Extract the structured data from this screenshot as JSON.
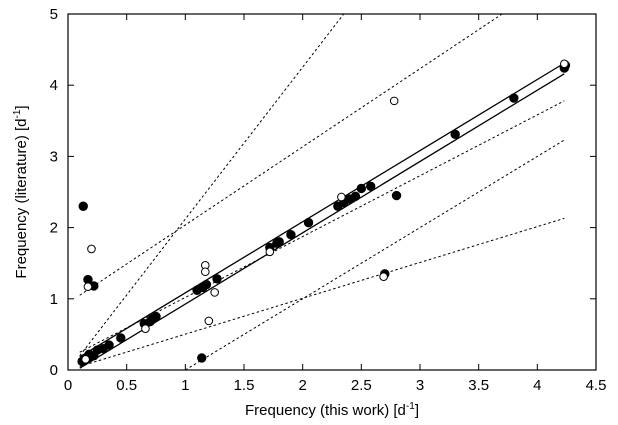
{
  "chart_data": {
    "type": "scatter",
    "title": "",
    "xlabel": "Frequency (this work) [d",
    "xlabel_sup": "-1",
    "xlabel_end": "]",
    "ylabel": "Frequency (literature) [d",
    "ylabel_sup": "-1",
    "ylabel_end": "]",
    "xlim": [
      0,
      4.5
    ],
    "ylim": [
      0,
      5
    ],
    "xticks": [
      "0",
      "0.5",
      "1",
      "1.5",
      "2",
      "2.5",
      "3",
      "3.5",
      "4",
      "4.5"
    ],
    "yticks": [
      "0",
      "1",
      "2",
      "3",
      "4",
      "5"
    ],
    "grid": false,
    "legend": "none",
    "series": [
      {
        "marker": "filled-circle",
        "points": [
          [
            0.12,
            0.12
          ],
          [
            0.14,
            0.14
          ],
          [
            0.15,
            0.15
          ],
          [
            0.17,
            0.17
          ],
          [
            0.19,
            0.2
          ],
          [
            0.18,
            0.22
          ],
          [
            0.22,
            0.2
          ],
          [
            0.25,
            0.28
          ],
          [
            0.3,
            0.3
          ],
          [
            0.35,
            0.35
          ],
          [
            0.45,
            0.45
          ],
          [
            0.65,
            0.65
          ],
          [
            0.7,
            0.68
          ],
          [
            0.72,
            0.72
          ],
          [
            0.75,
            0.75
          ],
          [
            1.1,
            1.12
          ],
          [
            1.15,
            1.16
          ],
          [
            1.18,
            1.2
          ],
          [
            1.27,
            1.28
          ],
          [
            1.72,
            1.72
          ],
          [
            1.78,
            1.78
          ],
          [
            1.8,
            1.8
          ],
          [
            1.9,
            1.9
          ],
          [
            2.05,
            2.07
          ],
          [
            2.3,
            2.3
          ],
          [
            2.35,
            2.35
          ],
          [
            2.4,
            2.4
          ],
          [
            2.45,
            2.44
          ],
          [
            2.5,
            2.55
          ],
          [
            2.58,
            2.58
          ],
          [
            3.3,
            3.31
          ],
          [
            3.8,
            3.82
          ],
          [
            4.23,
            4.24
          ],
          [
            4.24,
            4.28
          ],
          [
            0.13,
            2.3
          ],
          [
            0.17,
            1.27
          ],
          [
            0.22,
            1.18
          ],
          [
            1.14,
            0.17
          ],
          [
            2.7,
            1.35
          ],
          [
            2.8,
            2.45
          ]
        ]
      },
      {
        "marker": "open-circle",
        "points": [
          [
            0.2,
            1.7
          ],
          [
            0.17,
            1.17
          ],
          [
            0.15,
            0.15
          ],
          [
            0.66,
            0.58
          ],
          [
            1.17,
            1.47
          ],
          [
            1.17,
            1.38
          ],
          [
            1.2,
            0.69
          ],
          [
            1.25,
            1.09
          ],
          [
            1.72,
            1.66
          ],
          [
            2.33,
            2.43
          ],
          [
            2.78,
            3.78
          ],
          [
            2.69,
            1.31
          ],
          [
            4.23,
            4.3
          ]
        ]
      }
    ],
    "lines": [
      {
        "style": "solid",
        "from": [
          0.1,
          0.185
        ],
        "to": [
          4.23,
          4.31
        ]
      },
      {
        "style": "solid",
        "from": [
          0.1,
          0.025
        ],
        "to": [
          4.23,
          4.16
        ]
      },
      {
        "style": "dotted",
        "from": [
          0.1,
          0.2
        ],
        "to": [
          2.35,
          5.0
        ]
      },
      {
        "style": "dotted",
        "from": [
          0.1,
          1.05
        ],
        "to": [
          3.7,
          5.0
        ]
      },
      {
        "style": "dotted",
        "from": [
          0.1,
          0.25
        ],
        "to": [
          4.23,
          3.78
        ]
      },
      {
        "style": "dotted",
        "from": [
          1.0,
          0.0
        ],
        "to": [
          4.23,
          3.23
        ]
      },
      {
        "style": "dotted",
        "from": [
          0.1,
          0.05
        ],
        "to": [
          4.23,
          2.13
        ]
      }
    ]
  }
}
